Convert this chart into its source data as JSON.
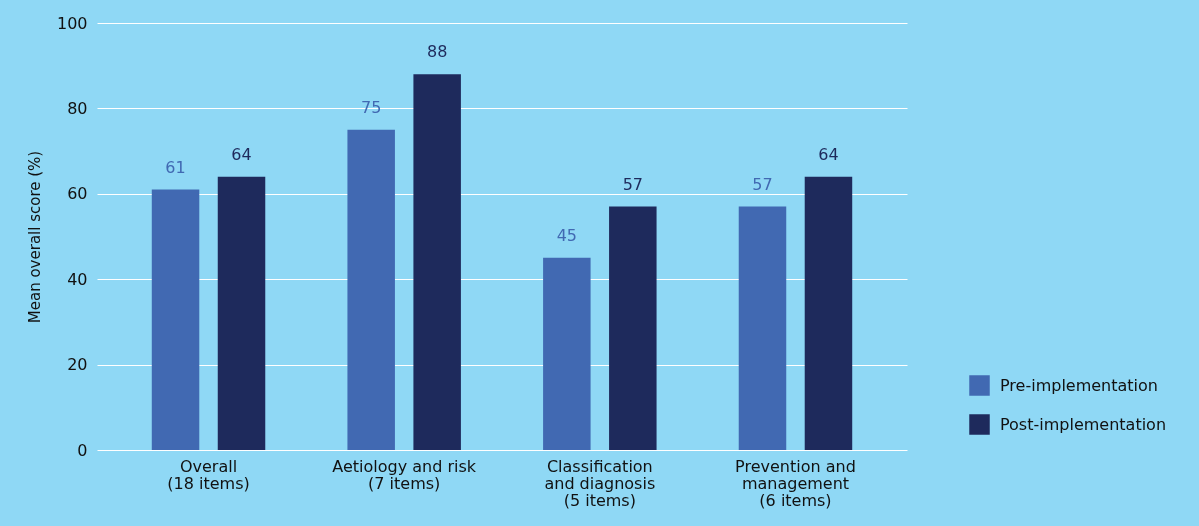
{
  "chart_data": {
    "type": "bar",
    "ylabel": "Mean overall score (%)",
    "categories": [
      "Overall (18 items)",
      "Aetiology and risk (7 items)",
      "Classification and diagnosis (5 items)",
      "Prevention and management (6 items)"
    ],
    "series": [
      {
        "name": "Pre-implementation",
        "color": "#4169b2",
        "values": [
          61,
          75,
          45,
          57
        ]
      },
      {
        "name": "Post-implementation",
        "color": "#1e2a5c",
        "values": [
          64,
          88,
          57,
          64
        ]
      }
    ],
    "ylim": [
      0,
      100
    ],
    "yticks": [
      0,
      20,
      40,
      60,
      80,
      100
    ],
    "grid": "y",
    "legend": "right",
    "data_labels": true
  }
}
